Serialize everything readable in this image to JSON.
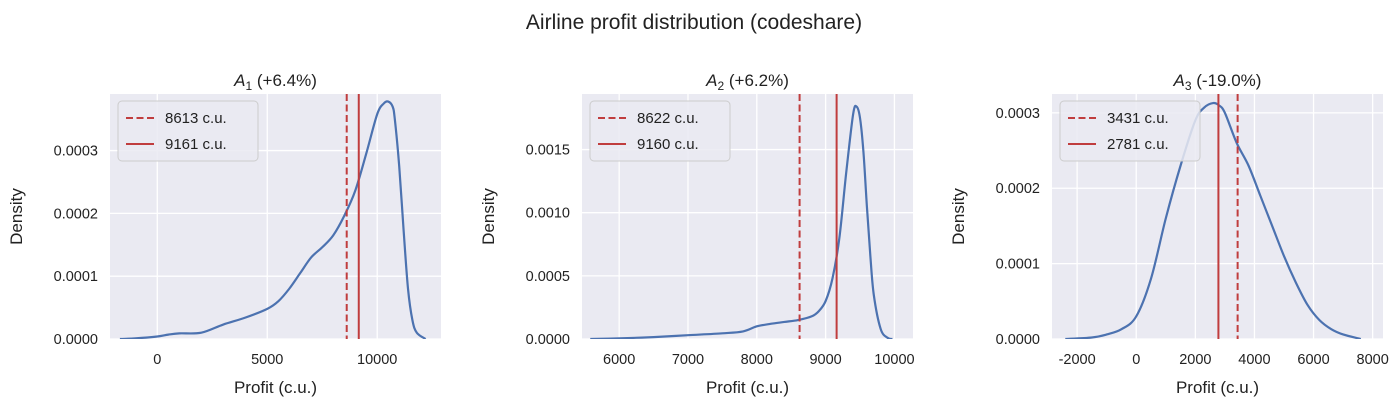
{
  "figure": {
    "title": "Airline profit distribution (codeshare)"
  },
  "chart_data": [
    {
      "type": "line",
      "title_symbol": "A",
      "title_subscript": "1",
      "title_suffix": " (+6.4%)",
      "xlabel": "Profit (c.u.)",
      "ylabel": "Density",
      "xlim": [
        -2150,
        12900
      ],
      "ylim": [
        0,
        0.00039
      ],
      "xticks": [
        0,
        5000,
        10000
      ],
      "xtick_labels": [
        "0",
        "5000",
        "10000"
      ],
      "yticks": [
        0,
        0.0001,
        0.0002,
        0.0003
      ],
      "ytick_labels": [
        "0.0000",
        "0.0001",
        "0.0002",
        "0.0003"
      ],
      "grid": true,
      "legend_position": "upper-left",
      "series": [
        {
          "kind": "density",
          "color": "#4c72b0",
          "x": [
            -1700,
            -1000,
            0,
            500,
            1000,
            2000,
            3000,
            4000,
            5000,
            5500,
            6000,
            6500,
            7000,
            7500,
            8000,
            8500,
            9000,
            9500,
            10000,
            10300,
            10500,
            10700,
            10800,
            11000,
            11200,
            11400,
            11600,
            11800,
            12200
          ],
          "y": [
            0.0,
            1e-06,
            4e-06,
            7e-06,
            9e-06,
            1e-05,
            2.3e-05,
            3.4e-05,
            4.8e-05,
            6e-05,
            8e-05,
            0.000105,
            0.00013,
            0.000146,
            0.000165,
            0.000196,
            0.000236,
            0.000295,
            0.000358,
            0.000375,
            0.000378,
            0.00037,
            0.00035,
            0.000275,
            0.000173,
            8e-05,
            3e-05,
            1e-05,
            0.0
          ]
        }
      ],
      "vlines": [
        {
          "x": 8613,
          "style": "dashed",
          "color": "#c03d3e",
          "label": "8613 c.u."
        },
        {
          "x": 9161,
          "style": "solid",
          "color": "#c03d3e",
          "label": "9161 c.u."
        }
      ]
    },
    {
      "type": "line",
      "title_symbol": "A",
      "title_subscript": "2",
      "title_suffix": " (+6.2%)",
      "xlabel": "Profit (c.u.)",
      "ylabel": "Density",
      "xlim": [
        5460,
        10270
      ],
      "ylim": [
        0,
        0.00194
      ],
      "xticks": [
        6000,
        7000,
        8000,
        9000,
        10000
      ],
      "xtick_labels": [
        "6000",
        "7000",
        "8000",
        "9000",
        "10000"
      ],
      "yticks": [
        0,
        0.0005,
        0.001,
        0.0015
      ],
      "ytick_labels": [
        "0.0000",
        "0.0005",
        "0.0010",
        "0.0015"
      ],
      "grid": true,
      "legend_position": "upper-left",
      "series": [
        {
          "kind": "density",
          "color": "#4c72b0",
          "x": [
            5580,
            6000,
            6500,
            7000,
            7500,
            7800,
            8000,
            8200,
            8400,
            8600,
            8800,
            8900,
            9000,
            9100,
            9200,
            9300,
            9400,
            9450,
            9500,
            9550,
            9600,
            9650,
            9700,
            9800,
            9900,
            9970
          ],
          "y": [
            0.0,
            5e-06,
            1.5e-05,
            3e-05,
            4.5e-05,
            6e-05,
            0.0001,
            0.00012,
            0.000135,
            0.00015,
            0.00018,
            0.00022,
            0.0003,
            0.00048,
            0.0008,
            0.00132,
            0.00178,
            0.00184,
            0.00175,
            0.00148,
            0.00105,
            0.00066,
            0.00035,
            8e-05,
            1e-05,
            0.0
          ]
        }
      ],
      "vlines": [
        {
          "x": 8622,
          "style": "dashed",
          "color": "#c03d3e",
          "label": "8622 c.u."
        },
        {
          "x": 9160,
          "style": "solid",
          "color": "#c03d3e",
          "label": "9160 c.u."
        }
      ]
    },
    {
      "type": "line",
      "title_symbol": "A",
      "title_subscript": "3",
      "title_suffix": " (-19.0%)",
      "xlabel": "Profit (c.u.)",
      "ylabel": "Density",
      "xlim": [
        -2850,
        8350
      ],
      "ylim": [
        0,
        0.000325
      ],
      "xticks": [
        -2000,
        0,
        2000,
        4000,
        6000,
        8000
      ],
      "xtick_labels": [
        "-2000",
        "0",
        "2000",
        "4000",
        "6000",
        "8000"
      ],
      "yticks": [
        0,
        0.0001,
        0.0002,
        0.0003
      ],
      "ytick_labels": [
        "0.0000",
        "0.0001",
        "0.0002",
        "0.0003"
      ],
      "grid": true,
      "legend_position": "upper-left",
      "series": [
        {
          "kind": "density",
          "color": "#4c72b0",
          "x": [
            -2400,
            -1500,
            -1000,
            -500,
            0,
            500,
            1000,
            1500,
            2000,
            2300,
            2600,
            2800,
            3000,
            3400,
            3800,
            4200,
            4600,
            5000,
            5400,
            5800,
            6200,
            6600,
            7000,
            7600
          ],
          "y": [
            0.0,
            2e-06,
            6e-06,
            1.3e-05,
            3e-05,
            8e-05,
            0.00016,
            0.00023,
            0.00029,
            0.000307,
            0.000313,
            0.00031,
            0.0003,
            0.00026,
            0.00023,
            0.00019,
            0.00015,
            0.00011,
            7.5e-05,
            4.5e-05,
            2.5e-05,
            1.3e-05,
            6e-06,
            0.0
          ]
        }
      ],
      "vlines": [
        {
          "x": 3431,
          "style": "dashed",
          "color": "#c03d3e",
          "label": "3431 c.u."
        },
        {
          "x": 2781,
          "style": "solid",
          "color": "#c03d3e",
          "label": "2781 c.u."
        }
      ]
    }
  ]
}
